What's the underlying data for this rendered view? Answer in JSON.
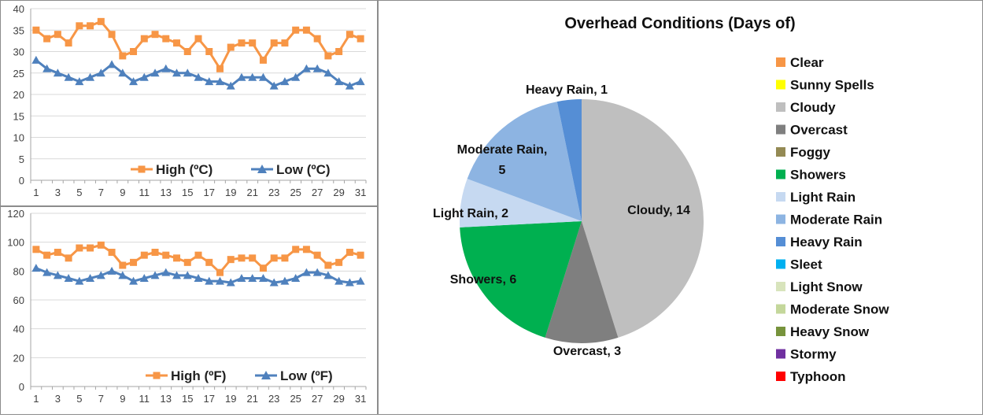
{
  "chart_data": [
    {
      "type": "line",
      "unit": "ºC",
      "x": [
        1,
        2,
        3,
        4,
        5,
        6,
        7,
        8,
        9,
        10,
        11,
        12,
        13,
        14,
        15,
        16,
        17,
        18,
        19,
        20,
        21,
        22,
        23,
        24,
        25,
        26,
        27,
        28,
        29,
        30,
        31
      ],
      "x_tick_labels": [
        "1",
        "3",
        "5",
        "7",
        "9",
        "11",
        "13",
        "15",
        "17",
        "19",
        "21",
        "23",
        "25",
        "27",
        "29",
        "31"
      ],
      "ylim": [
        0,
        40
      ],
      "y_ticks": [
        0,
        5,
        10,
        15,
        20,
        25,
        30,
        35,
        40
      ],
      "grid": true,
      "legend": "bottom",
      "series": [
        {
          "name": "High (ºC)",
          "color": "#f79646",
          "marker": "square",
          "values": [
            35,
            33,
            34,
            32,
            36,
            36,
            37,
            34,
            29,
            30,
            33,
            34,
            33,
            32,
            30,
            33,
            30,
            26,
            31,
            32,
            32,
            28,
            32,
            32,
            35,
            35,
            33,
            29,
            30,
            34,
            33
          ]
        },
        {
          "name": "Low (ºC)",
          "color": "#4f81bd",
          "marker": "triangle",
          "values": [
            28,
            26,
            25,
            24,
            23,
            24,
            25,
            27,
            25,
            23,
            24,
            25,
            26,
            25,
            25,
            24,
            23,
            23,
            22,
            24,
            24,
            24,
            22,
            23,
            24,
            26,
            26,
            25,
            23,
            22,
            23
          ]
        }
      ]
    },
    {
      "type": "line",
      "unit": "ºF",
      "x": [
        1,
        2,
        3,
        4,
        5,
        6,
        7,
        8,
        9,
        10,
        11,
        12,
        13,
        14,
        15,
        16,
        17,
        18,
        19,
        20,
        21,
        22,
        23,
        24,
        25,
        26,
        27,
        28,
        29,
        30,
        31
      ],
      "x_tick_labels": [
        "1",
        "3",
        "5",
        "7",
        "9",
        "11",
        "13",
        "15",
        "17",
        "19",
        "21",
        "23",
        "25",
        "27",
        "29",
        "31"
      ],
      "ylim": [
        0,
        120
      ],
      "y_ticks": [
        0,
        20,
        40,
        60,
        80,
        100,
        120
      ],
      "grid": true,
      "legend": "bottom",
      "series": [
        {
          "name": "High (ºF)",
          "color": "#f79646",
          "marker": "square",
          "values": [
            95,
            91,
            93,
            89,
            96,
            96,
            98,
            93,
            84,
            86,
            91,
            93,
            91,
            89,
            86,
            91,
            86,
            79,
            88,
            89,
            89,
            82,
            89,
            89,
            95,
            95,
            91,
            84,
            86,
            93,
            91
          ]
        },
        {
          "name": "Low (ºF)",
          "color": "#4f81bd",
          "marker": "triangle",
          "values": [
            82,
            79,
            77,
            75,
            73,
            75,
            77,
            80,
            77,
            73,
            75,
            77,
            79,
            77,
            77,
            75,
            73,
            73,
            72,
            75,
            75,
            75,
            72,
            73,
            75,
            79,
            79,
            77,
            73,
            72,
            73
          ]
        }
      ]
    },
    {
      "type": "pie",
      "title": "Overhead Conditions (Days of)",
      "legend": "right",
      "slices": [
        {
          "label": "Cloudy",
          "value": 14,
          "color": "#bfbfbf",
          "text": "Cloudy, 14"
        },
        {
          "label": "Overcast",
          "value": 3,
          "color": "#7f7f7f",
          "text": "Overcast, 3"
        },
        {
          "label": "Showers",
          "value": 6,
          "color": "#00b050",
          "text": "Showers, 6"
        },
        {
          "label": "Light Rain",
          "value": 2,
          "color": "#c6d9f1",
          "text": "Light Rain, 2"
        },
        {
          "label": "Moderate Rain",
          "value": 5,
          "color": "#8db4e2",
          "text": "Moderate Rain,\n5"
        },
        {
          "label": "Heavy Rain",
          "value": 1,
          "color": "#558ed5",
          "text": "Heavy Rain, 1"
        }
      ],
      "legend_entries": [
        {
          "label": "Clear",
          "color": "#f79646"
        },
        {
          "label": "Sunny Spells",
          "color": "#ffff00"
        },
        {
          "label": "Cloudy",
          "color": "#bfbfbf"
        },
        {
          "label": "Overcast",
          "color": "#7f7f7f"
        },
        {
          "label": "Foggy",
          "color": "#948a54"
        },
        {
          "label": "Showers",
          "color": "#00b050"
        },
        {
          "label": "Light Rain",
          "color": "#c6d9f1"
        },
        {
          "label": "Moderate Rain",
          "color": "#8db4e2"
        },
        {
          "label": "Heavy Rain",
          "color": "#558ed5"
        },
        {
          "label": "Sleet",
          "color": "#00b0f0"
        },
        {
          "label": "Light Snow",
          "color": "#d8e4bc"
        },
        {
          "label": "Moderate Snow",
          "color": "#c4d79b"
        },
        {
          "label": "Heavy Snow",
          "color": "#77933c"
        },
        {
          "label": "Stormy",
          "color": "#7030a0"
        },
        {
          "label": "Typhoon",
          "color": "#ff0000"
        }
      ]
    }
  ]
}
